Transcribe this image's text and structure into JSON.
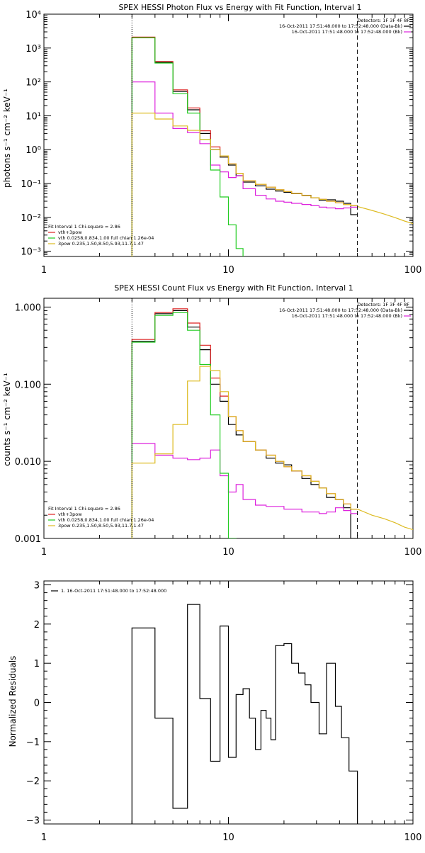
{
  "chart_data": [
    {
      "type": "line",
      "title": "SPEX HESSI Photon Flux vs Energy with Fit Function, Interval 1",
      "ylabel": "photons s⁻¹ cm⁻² keV⁻¹",
      "xlabel": "",
      "xscale": "log",
      "yscale": "log",
      "xlim": [
        1,
        100
      ],
      "ylim": [
        0.0007,
        10000
      ],
      "x_tick_labels": [
        "1",
        "10",
        "100"
      ],
      "y_tick_labels": [
        "10⁻³",
        "10⁻²",
        "10⁻¹",
        "10⁰",
        "10¹",
        "10²",
        "10³",
        "10⁴"
      ],
      "vlines": [
        {
          "x": 3,
          "style": "dotted"
        },
        {
          "x": 50,
          "style": "dashed"
        }
      ],
      "legend_top_right": [
        {
          "text": "Detectors: 1F 3F 4F 8F",
          "color": ""
        },
        {
          "text": "16-Oct-2011 17:51:48.000 to 17:52:48.000 (Data-Bk)",
          "color": "#000000"
        },
        {
          "text": "16-Oct-2011 17:51:48.000 to 17:52:48.000 (Bk)",
          "color": "#dd22dd"
        }
      ],
      "legend_bottom_left": [
        {
          "text": "Fit Interval 1    Chi-square = 2.86",
          "color": ""
        },
        {
          "text": "vth+3pow",
          "color": "#dd2222"
        },
        {
          "text": "vth 0.0258,0.834,1.00  full chian 1.26e-04",
          "color": "#22cc22"
        },
        {
          "text": "3pow 0.235,1.50,8.50,5.93,11.7,1.47",
          "color": "#ddbb22"
        }
      ],
      "series": [
        {
          "name": "Data-Bk",
          "color": "#000000",
          "edges": [
            3,
            4,
            5,
            6,
            7,
            8,
            9,
            10,
            11,
            12,
            14,
            16,
            18,
            20,
            22,
            25,
            28,
            31,
            34,
            38,
            42,
            46,
            50
          ],
          "values": [
            2000,
            380,
            52,
            15,
            3.0,
            1.0,
            0.6,
            0.35,
            0.17,
            0.11,
            0.085,
            0.068,
            0.06,
            0.055,
            0.05,
            0.045,
            0.038,
            0.032,
            0.033,
            0.03,
            0.026,
            0.012
          ]
        },
        {
          "name": "vth+3pow",
          "color": "#dd2222",
          "edges": [
            3,
            4,
            5,
            6,
            7,
            8,
            9,
            10,
            11,
            12,
            14,
            16,
            18,
            20,
            22,
            25,
            28,
            31,
            34,
            38,
            42,
            46,
            50
          ],
          "values": [
            2100,
            400,
            58,
            17,
            3.6,
            1.2,
            0.65,
            0.38,
            0.2,
            0.12,
            0.095,
            0.078,
            0.065,
            0.058,
            0.051,
            0.044,
            0.038,
            0.034,
            0.03,
            0.027,
            0.024,
            0.022
          ]
        },
        {
          "name": "Bk",
          "color": "#dd22dd",
          "edges": [
            3,
            4,
            5,
            6,
            7,
            8,
            9,
            10,
            11,
            12,
            14,
            16,
            18,
            20,
            22,
            25,
            28,
            31,
            34,
            38,
            42,
            46,
            50
          ],
          "values": [
            100,
            12,
            4.2,
            3.2,
            1.5,
            0.35,
            0.22,
            0.15,
            0.17,
            0.07,
            0.045,
            0.035,
            0.03,
            0.028,
            0.026,
            0.024,
            0.022,
            0.02,
            0.019,
            0.018,
            0.019,
            0.02
          ]
        },
        {
          "name": "vth",
          "color": "#22cc22",
          "edges": [
            3,
            4,
            5,
            6,
            7,
            8,
            9,
            10,
            11,
            12
          ],
          "values": [
            2000,
            360,
            45,
            12,
            2.0,
            0.25,
            0.04,
            0.006,
            0.0012
          ]
        },
        {
          "name": "3pow",
          "color": "#ddbb22",
          "edges": [
            3,
            4,
            5,
            6,
            7,
            8,
            9,
            10,
            11,
            12,
            14,
            16,
            18,
            20,
            22,
            25,
            28,
            31,
            34,
            38,
            42,
            46,
            50
          ],
          "values": [
            12,
            8,
            5,
            3.7,
            2.0,
            1.0,
            0.65,
            0.38,
            0.2,
            0.12,
            0.095,
            0.078,
            0.065,
            0.058,
            0.051,
            0.044,
            0.038,
            0.034,
            0.03,
            0.027,
            0.024,
            0.022
          ]
        },
        {
          "name": "3pow-extension",
          "color": "#ddbb22",
          "line_x": [
            50,
            60,
            70,
            80,
            90,
            100
          ],
          "line_y": [
            0.021,
            0.016,
            0.0125,
            0.0098,
            0.0078,
            0.0065
          ]
        }
      ]
    },
    {
      "type": "line",
      "title": "SPEX HESSI Count Flux vs Energy with Fit Function, Interval 1",
      "ylabel": "counts s⁻¹ cm⁻² keV⁻¹",
      "xlabel": "",
      "xscale": "log",
      "yscale": "log",
      "xlim": [
        1,
        100
      ],
      "ylim": [
        0.001,
        1.3
      ],
      "x_tick_labels": [
        "1",
        "10",
        "100"
      ],
      "y_tick_labels": [
        "0.001",
        "0.010",
        "0.100",
        "1.000"
      ],
      "vlines": [
        {
          "x": 3,
          "style": "dotted"
        },
        {
          "x": 50,
          "style": "dashed"
        }
      ],
      "legend_top_right": [
        {
          "text": "Detectors: 1F 3F 4F 8F",
          "color": ""
        },
        {
          "text": "16-Oct-2011 17:51:48.000 to 17:52:48.000 (Data-Bk)",
          "color": "#000000"
        },
        {
          "text": "16-Oct-2011 17:51:48.000 to 17:52:48.000 (Bk)",
          "color": "#dd22dd"
        }
      ],
      "legend_bottom_left": [
        {
          "text": "Fit Interval 1    Chi-square = 2.86",
          "color": ""
        },
        {
          "text": "vth+3pow",
          "color": "#dd2222"
        },
        {
          "text": "vth 0.0258,0.834,1.00  full chian 1.26e-04",
          "color": "#22cc22"
        },
        {
          "text": "3pow 0.235,1.50,8.50,5.93,11.7,1.47",
          "color": "#ddbb22"
        }
      ],
      "series": [
        {
          "name": "Data-Bk",
          "color": "#000000",
          "edges": [
            3,
            4,
            5,
            6,
            7,
            8,
            9,
            10,
            11,
            12,
            14,
            16,
            18,
            20,
            22,
            25,
            28,
            31,
            34,
            38,
            42,
            46,
            50
          ],
          "values": [
            0.36,
            0.82,
            0.9,
            0.55,
            0.28,
            0.1,
            0.06,
            0.03,
            0.022,
            0.018,
            0.014,
            0.011,
            0.0095,
            0.009,
            0.0075,
            0.006,
            0.005,
            0.0045,
            0.0034,
            0.0032,
            0.0025,
            0.001
          ]
        },
        {
          "name": "vth+3pow",
          "color": "#dd2222",
          "edges": [
            3,
            4,
            5,
            6,
            7,
            8,
            9,
            10,
            11,
            12,
            14,
            16,
            18,
            20,
            22,
            25,
            28,
            31,
            34,
            38,
            42,
            46,
            50
          ],
          "values": [
            0.38,
            0.85,
            0.95,
            0.62,
            0.32,
            0.12,
            0.07,
            0.038,
            0.025,
            0.018,
            0.014,
            0.012,
            0.01,
            0.0085,
            0.0075,
            0.0065,
            0.0055,
            0.0045,
            0.0038,
            0.0032,
            0.0028,
            0.0024
          ]
        },
        {
          "name": "Bk",
          "color": "#dd22dd",
          "edges": [
            3,
            4,
            5,
            6,
            7,
            8,
            9,
            10,
            11,
            12,
            14,
            16,
            18,
            20,
            22,
            25,
            28,
            31,
            34,
            38,
            42,
            46,
            50
          ],
          "values": [
            0.017,
            0.012,
            0.011,
            0.0105,
            0.011,
            0.014,
            0.0065,
            0.004,
            0.005,
            0.0032,
            0.0027,
            0.0026,
            0.0026,
            0.0024,
            0.0024,
            0.0022,
            0.0022,
            0.0021,
            0.0022,
            0.0025,
            0.0023,
            0.0021
          ]
        },
        {
          "name": "vth",
          "color": "#22cc22",
          "edges": [
            3,
            4,
            5,
            6,
            7,
            8,
            9,
            10,
            11
          ],
          "values": [
            0.35,
            0.78,
            0.85,
            0.5,
            0.18,
            0.04,
            0.007,
            0.001
          ]
        },
        {
          "name": "3pow",
          "color": "#ddbb22",
          "edges": [
            3,
            4,
            5,
            6,
            7,
            8,
            9,
            10,
            11,
            12,
            14,
            16,
            18,
            20,
            22,
            25,
            28,
            31,
            34,
            38,
            42,
            46,
            50
          ],
          "values": [
            0.0095,
            0.0125,
            0.03,
            0.11,
            0.17,
            0.15,
            0.08,
            0.038,
            0.025,
            0.018,
            0.014,
            0.012,
            0.01,
            0.0085,
            0.0075,
            0.0065,
            0.0055,
            0.0045,
            0.0038,
            0.0032,
            0.0028,
            0.0024
          ]
        },
        {
          "name": "3pow-extension",
          "color": "#ddbb22",
          "line_x": [
            50,
            60,
            70,
            80,
            90,
            100
          ],
          "line_y": [
            0.0024,
            0.002,
            0.0018,
            0.0016,
            0.0014,
            0.0013
          ]
        }
      ]
    },
    {
      "type": "line",
      "title": "",
      "ylabel": "Normalized Residuals",
      "xlabel": "",
      "xscale": "log",
      "yscale": "linear",
      "xlim": [
        1,
        100
      ],
      "ylim": [
        -3.1,
        3.1
      ],
      "x_tick_labels": [
        "1",
        "10",
        "100"
      ],
      "y_tick_labels": [
        "−3",
        "−2",
        "−1",
        "0",
        "1",
        "2",
        "3"
      ],
      "y_ticks": [
        -3,
        -2,
        -1,
        0,
        1,
        2,
        3
      ],
      "vlines": [],
      "legend_top_left": [
        {
          "text": "1. 16-Oct-2011 17:51:48.000 to 17:52:48.000",
          "color": "#000000"
        }
      ],
      "series": [
        {
          "name": "1. 16-Oct-2011 17:51:48.000 to 17:52:48.000",
          "color": "#000000",
          "edges": [
            3,
            4,
            5,
            6,
            7,
            8,
            9,
            10,
            11,
            12,
            13,
            14,
            15,
            16,
            17,
            18,
            20,
            22,
            24,
            26,
            28,
            31,
            34,
            38,
            41,
            45,
            50
          ],
          "values": [
            1.9,
            -0.4,
            -2.7,
            2.5,
            0.1,
            -1.5,
            1.95,
            -1.4,
            0.2,
            0.35,
            -0.4,
            -1.2,
            -0.2,
            -0.4,
            -0.95,
            1.45,
            1.5,
            1.0,
            0.75,
            0.45,
            0.0,
            -0.8,
            1.0,
            -0.1,
            -0.9,
            -1.75
          ]
        }
      ]
    }
  ]
}
